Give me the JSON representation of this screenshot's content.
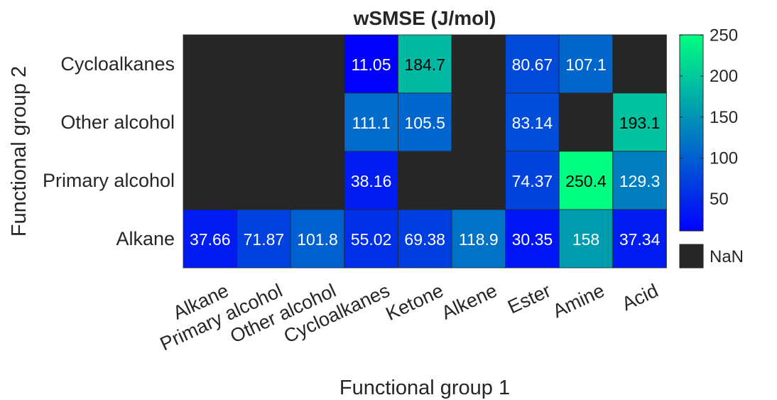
{
  "chart_data": {
    "type": "heatmap",
    "title": "wSMSE (J/mol)",
    "xlabel": "Functional group 1",
    "ylabel": "Functional group 2",
    "x_categories": [
      "Alkane",
      "Primary alcohol",
      "Other alcohol",
      "Cycloalkanes",
      "Ketone",
      "Alkene",
      "Ester",
      "Amine",
      "Acid"
    ],
    "y_categories": [
      "Cycloalkanes",
      "Other alcohol",
      "Primary alcohol",
      "Alkane"
    ],
    "values": [
      [
        null,
        null,
        null,
        11.05,
        184.7,
        null,
        80.67,
        107.1,
        null
      ],
      [
        null,
        null,
        null,
        111.1,
        105.5,
        null,
        83.14,
        null,
        193.1
      ],
      [
        null,
        null,
        null,
        38.16,
        null,
        null,
        74.37,
        250.4,
        129.3
      ],
      [
        37.66,
        71.87,
        101.8,
        55.02,
        69.38,
        118.9,
        30.35,
        158,
        37.34
      ]
    ],
    "value_labels": [
      [
        "",
        "",
        "",
        "11.05",
        "184.7",
        "",
        "80.67",
        "107.1",
        ""
      ],
      [
        "",
        "",
        "",
        "111.1",
        "105.5",
        "",
        "83.14",
        "",
        "193.1"
      ],
      [
        "",
        "",
        "",
        "38.16",
        "",
        "",
        "74.37",
        "250.4",
        "129.3"
      ],
      [
        "37.66",
        "71.87",
        "101.8",
        "55.02",
        "69.38",
        "118.9",
        "30.35",
        "158",
        "37.34"
      ]
    ],
    "colorbar": {
      "min": 11.05,
      "max": 250.4,
      "ticks": [
        50,
        100,
        150,
        200,
        250
      ],
      "tick_labels": [
        "50",
        "100",
        "150",
        "200",
        "250"
      ],
      "colormap": [
        "#0000ff",
        "#00ff80"
      ],
      "nan_color": "#262626",
      "nan_label": "NaN"
    }
  }
}
